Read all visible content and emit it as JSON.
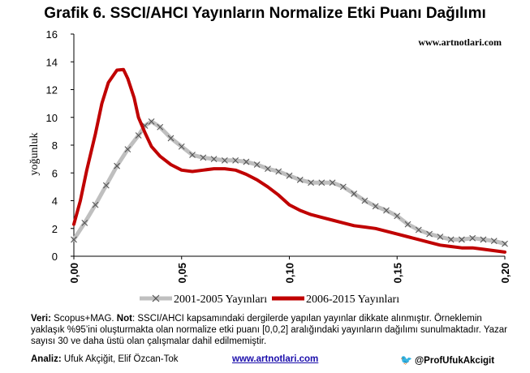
{
  "chart_data": {
    "type": "line",
    "title": "Grafik 6. SSCI/AHCI Yayınların Normalize Etki Puanı Dağılımı",
    "watermark": "www.artnotlari.com",
    "ylabel": "yoğunluk",
    "xlabel": "",
    "xlim": [
      0,
      0.2
    ],
    "ylim": [
      0,
      16
    ],
    "x_ticks": [
      "0,00",
      "0,05",
      "0,10",
      "0,15",
      "0,20"
    ],
    "y_ticks": [
      "0",
      "2",
      "4",
      "6",
      "8",
      "10",
      "12",
      "14",
      "16"
    ],
    "legend_position": "bottom",
    "grid": false,
    "series": [
      {
        "name": "2001-2005 Yayınları",
        "color": "#bfbfbf",
        "marker": "x",
        "x": [
          0,
          0.005,
          0.01,
          0.015,
          0.02,
          0.025,
          0.03,
          0.033,
          0.036,
          0.04,
          0.045,
          0.05,
          0.055,
          0.06,
          0.065,
          0.07,
          0.075,
          0.08,
          0.085,
          0.09,
          0.095,
          0.1,
          0.105,
          0.11,
          0.115,
          0.12,
          0.125,
          0.13,
          0.135,
          0.14,
          0.145,
          0.15,
          0.155,
          0.16,
          0.165,
          0.17,
          0.175,
          0.18,
          0.185,
          0.19,
          0.195,
          0.2
        ],
        "y": [
          1.2,
          2.4,
          3.7,
          5.1,
          6.5,
          7.7,
          8.7,
          9.4,
          9.7,
          9.3,
          8.5,
          7.9,
          7.3,
          7.1,
          7.0,
          6.9,
          6.9,
          6.8,
          6.6,
          6.3,
          6.1,
          5.8,
          5.5,
          5.3,
          5.3,
          5.3,
          5.0,
          4.5,
          4.0,
          3.6,
          3.3,
          2.9,
          2.3,
          1.9,
          1.6,
          1.4,
          1.2,
          1.2,
          1.3,
          1.2,
          1.1,
          0.9
        ]
      },
      {
        "name": "2006-2015 Yayınları",
        "color": "#c00000",
        "marker": "none",
        "x": [
          0,
          0.003,
          0.006,
          0.01,
          0.013,
          0.016,
          0.02,
          0.023,
          0.025,
          0.028,
          0.03,
          0.033,
          0.036,
          0.04,
          0.045,
          0.05,
          0.055,
          0.06,
          0.065,
          0.07,
          0.075,
          0.08,
          0.085,
          0.09,
          0.095,
          0.1,
          0.105,
          0.11,
          0.115,
          0.12,
          0.125,
          0.13,
          0.135,
          0.14,
          0.145,
          0.15,
          0.155,
          0.16,
          0.165,
          0.17,
          0.175,
          0.18,
          0.185,
          0.19,
          0.195,
          0.2
        ],
        "y": [
          2.3,
          4.0,
          6.2,
          8.8,
          11.0,
          12.5,
          13.4,
          13.45,
          12.8,
          11.4,
          10.0,
          8.9,
          7.9,
          7.2,
          6.6,
          6.2,
          6.1,
          6.2,
          6.3,
          6.3,
          6.2,
          5.9,
          5.5,
          5.0,
          4.4,
          3.7,
          3.3,
          3.0,
          2.8,
          2.6,
          2.4,
          2.2,
          2.1,
          2.0,
          1.8,
          1.6,
          1.4,
          1.2,
          1.0,
          0.8,
          0.7,
          0.6,
          0.6,
          0.5,
          0.4,
          0.3
        ]
      }
    ]
  },
  "footer": {
    "source_label": "Veri:",
    "source_text": " Scopus+MAG. ",
    "note_label": "Not",
    "note_text": ": SSCI/AHCI kapsamındaki dergilerde yapılan yayınlar dikkate alınmıştır. Örneklemin yaklaşık %95’ini oluşturmakta olan normalize etki puanı [0,0,2] aralığındaki yayınların dağılımı sunulmaktadır. Yazar sayısı 30 ve daha üstü olan çalışmalar dahil edilmemiştir.",
    "analysis_label": "Analiz:",
    "analysis_text": " Ufuk Akçiğit, Elif Özcan-Tok",
    "site": "www.artnotlari.com",
    "handle": "@ProfUfukAkcigit"
  }
}
